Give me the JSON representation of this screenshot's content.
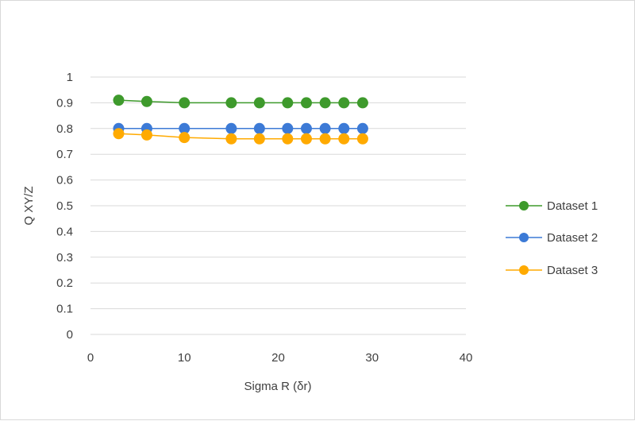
{
  "chart_data": {
    "type": "line",
    "xlabel": "Sigma R  (δr)",
    "ylabel": "Q XY/Z",
    "xlim": [
      0,
      40
    ],
    "ylim": [
      0,
      1
    ],
    "x_ticks": [
      "0",
      "10",
      "20",
      "30",
      "40"
    ],
    "y_ticks": [
      "0",
      "0.1",
      "0.2",
      "0.3",
      "0.4",
      "0.5",
      "0.6",
      "0.7",
      "0.8",
      "0.9",
      "1"
    ],
    "grid": "horizontal",
    "legend_position": "right",
    "x": [
      3,
      6,
      10,
      15,
      18,
      21,
      23,
      25,
      27,
      29
    ],
    "series": [
      {
        "name": "Dataset 1",
        "color": "#3e9a2c",
        "values": [
          0.91,
          0.905,
          0.9,
          0.9,
          0.9,
          0.9,
          0.9,
          0.9,
          0.9,
          0.9
        ]
      },
      {
        "name": "Dataset 2",
        "color": "#3c7ad6",
        "values": [
          0.8,
          0.8,
          0.8,
          0.8,
          0.8,
          0.8,
          0.8,
          0.8,
          0.8,
          0.8
        ]
      },
      {
        "name": "Dataset 3",
        "color": "#ffaa00",
        "values": [
          0.78,
          0.775,
          0.765,
          0.76,
          0.76,
          0.76,
          0.76,
          0.76,
          0.76,
          0.76
        ]
      }
    ]
  }
}
